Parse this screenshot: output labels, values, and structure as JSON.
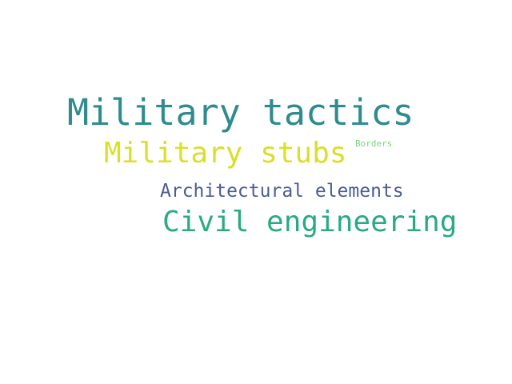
{
  "words": [
    {
      "text": "Military tactics",
      "color": "#2e8b8e"
    },
    {
      "text": "Military stubs",
      "color": "#d9df2a"
    },
    {
      "text": "Borders",
      "color": "#7cd67c"
    },
    {
      "text": "Architectural elements",
      "color": "#4a5d94"
    },
    {
      "text": "Civil engineering",
      "color": "#2aaa84"
    }
  ]
}
